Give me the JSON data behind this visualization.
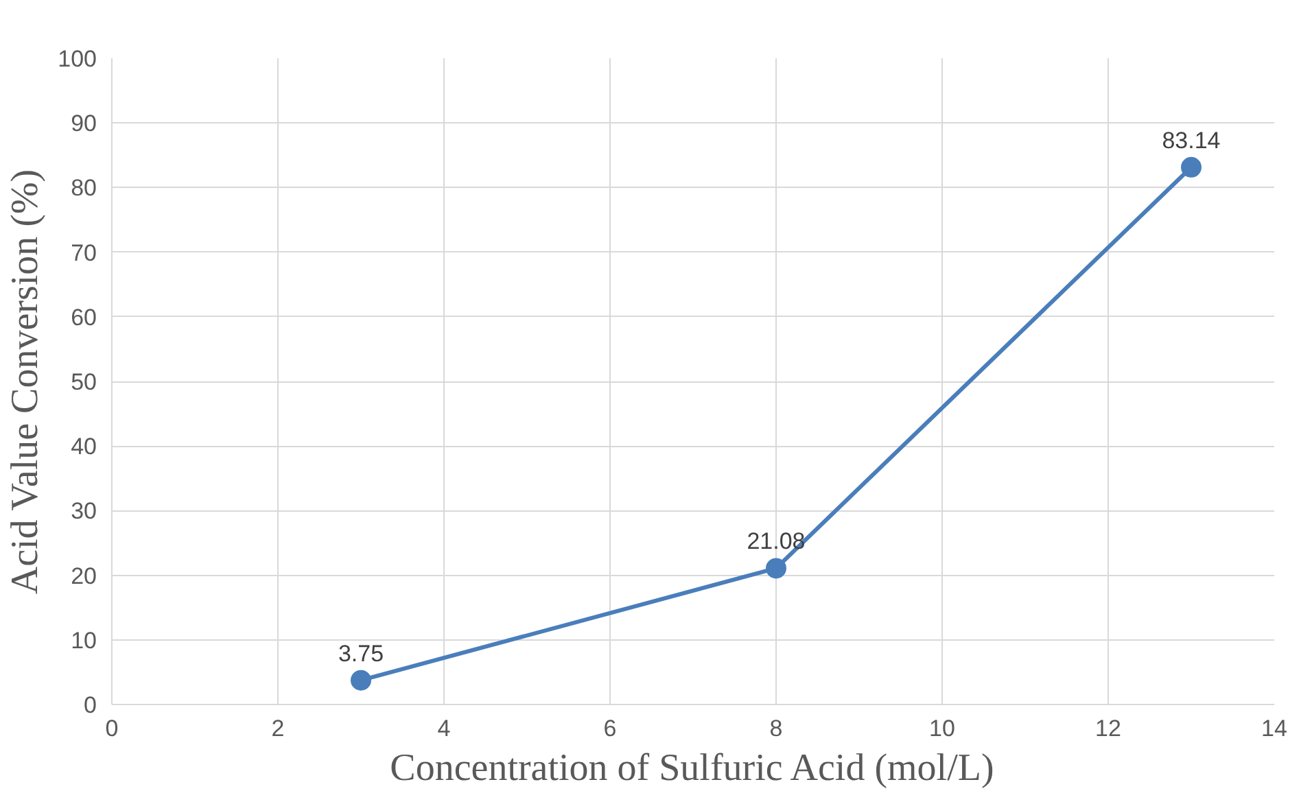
{
  "chart_data": {
    "type": "line",
    "xlabel": "Concentration of Sulfuric Acid (mol/L)",
    "ylabel": "Acid Value Conversion (%)",
    "x": [
      3,
      8,
      13
    ],
    "series": [
      {
        "color": "#4a7ebb",
        "values": [
          3.75,
          21.08,
          83.14
        ]
      }
    ],
    "xlim": [
      0,
      14
    ],
    "xticks": [
      0,
      2,
      4,
      6,
      8,
      10,
      12,
      14
    ],
    "ylim": [
      0,
      100
    ],
    "yticks": [
      0,
      10,
      20,
      30,
      40,
      50,
      60,
      70,
      80,
      90,
      100
    ],
    "grid": true,
    "marker": "circle",
    "line_style": "solid",
    "data_labels": true
  }
}
